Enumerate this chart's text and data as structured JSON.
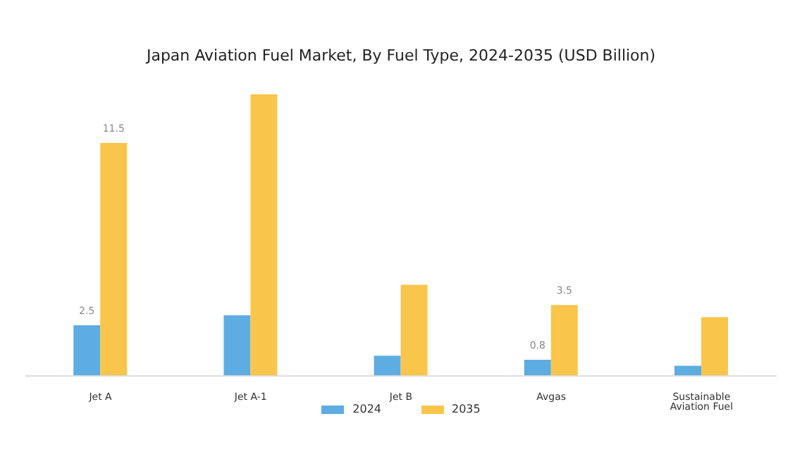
{
  "chart_data": {
    "type": "bar",
    "title": "Japan Aviation Fuel Market, By Fuel Type, 2024-2035 (USD Billion)",
    "categories": [
      "Jet A",
      "Jet A-1",
      "Jet B",
      "Avgas",
      "Sustainable Aviation Fuel"
    ],
    "series": [
      {
        "name": "2024",
        "color": "#5dade2",
        "values": [
          2.5,
          3.0,
          1.0,
          0.8,
          0.5
        ],
        "value_labels": [
          "2.5",
          null,
          null,
          "0.8",
          null
        ]
      },
      {
        "name": "2035",
        "color": "#f9c54b",
        "values": [
          11.5,
          13.9,
          4.5,
          3.5,
          2.9
        ],
        "value_labels": [
          "11.5",
          null,
          null,
          "3.5",
          null
        ]
      }
    ],
    "legend": "bottom",
    "grid": false
  }
}
